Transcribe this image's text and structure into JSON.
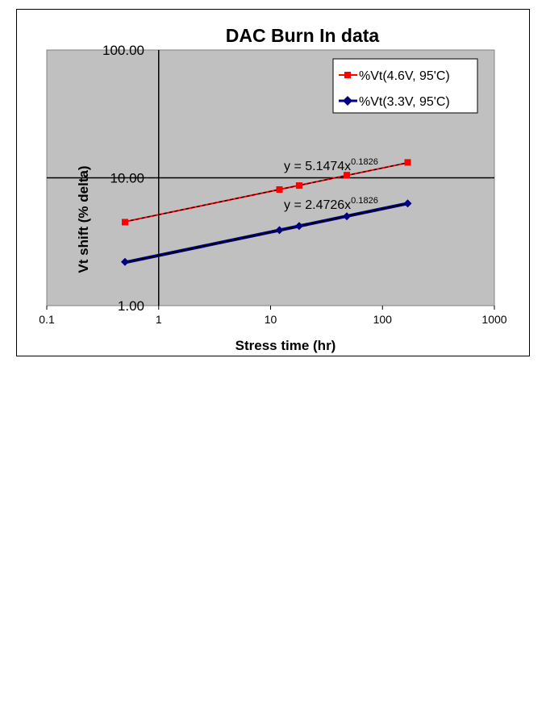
{
  "chart_data": {
    "type": "scatter",
    "title": "DAC Burn In data",
    "xlabel": "Stress time (hr)",
    "ylabel": "Vt shift (% delta)",
    "x_scale": "log",
    "y_scale": "log",
    "xlim": [
      0.1,
      1000
    ],
    "ylim": [
      1,
      100
    ],
    "x_ticks": [
      "0.1",
      "1",
      "10",
      "100",
      "1000"
    ],
    "y_ticks": [
      "1.00",
      "10.00",
      "100.00"
    ],
    "grid": "major horizontal and vertical lines at 1 and 10",
    "legend_position": "top-right",
    "plot_background": "#c0c0c0",
    "series": [
      {
        "name": "%Vt(4.6V, 95'C)",
        "color": "#ff0000",
        "marker": "square",
        "x": [
          0.5,
          12,
          18,
          48,
          168
        ],
        "y": [
          4.5,
          8.1,
          8.7,
          10.5,
          13.2
        ],
        "trendline": {
          "coef": "5.1474",
          "exp": "0.1826",
          "label_prefix": "y = ",
          "style": "dashed-black"
        }
      },
      {
        "name": "%Vt(3.3V, 95'C)",
        "color": "#000080",
        "marker": "diamond",
        "x": [
          0.5,
          12,
          18,
          48,
          168
        ],
        "y": [
          2.2,
          3.9,
          4.2,
          5.0,
          6.3
        ],
        "trendline": {
          "coef": "2.4726",
          "exp": "0.1826",
          "label_prefix": "y = ",
          "style": "solid-black"
        }
      }
    ]
  }
}
